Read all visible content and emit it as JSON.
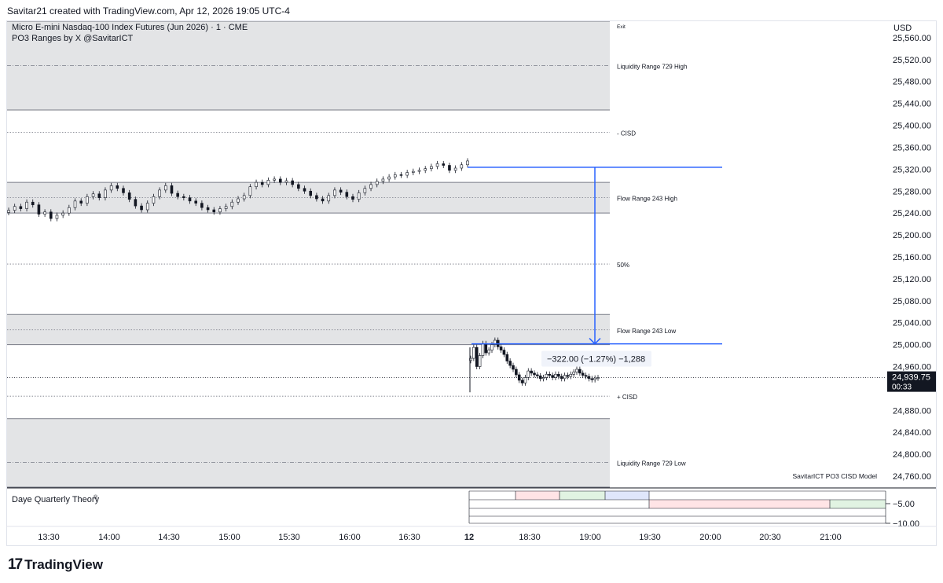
{
  "header": {
    "attribution": "Savitar21 created with TradingView.com, Apr 12, 2026 19:05 UTC-4"
  },
  "legend": {
    "symbol": "Micro E-mini Nasdaq-100 Index Futures (Jun 2026) · 1 · CME",
    "indicator": "PO3 Ranges by X @SavitarICT"
  },
  "brand": {
    "mark": "17",
    "name": "TradingView"
  },
  "colors": {
    "measure": "#2962ff",
    "candle": "#131722",
    "zone": "#e3e4e6",
    "price_label_bg": "#131722"
  },
  "chart_data": {
    "type": "candlestick",
    "currency": "USD",
    "ylim": [
      24740,
      25590
    ],
    "y_ticks": [
      25560,
      25520,
      25480,
      25440,
      25400,
      25360,
      25320,
      25280,
      25240,
      25200,
      25160,
      25120,
      25080,
      25040,
      25000,
      24960,
      24880,
      24840,
      24800,
      24760
    ],
    "y_tick_labels": [
      "25,560.00",
      "25,520.00",
      "25,480.00",
      "25,440.00",
      "25,400.00",
      "25,360.00",
      "25,320.00",
      "25,280.00",
      "25,240.00",
      "25,200.00",
      "25,160.00",
      "25,120.00",
      "25,080.00",
      "25,040.00",
      "25,000.00",
      "24,960.00",
      "24,880.00",
      "24,840.00",
      "24,800.00",
      "24,760.00"
    ],
    "x_ticks": [
      "13:30",
      "14:00",
      "14:30",
      "15:00",
      "15:30",
      "16:00",
      "16:30",
      "12",
      "18:30",
      "19:00",
      "19:30",
      "20:00",
      "20:30",
      "21:00"
    ],
    "last_price": {
      "value": 24939.75,
      "label": "24,939.75",
      "countdown": "00:33"
    },
    "zones": [
      {
        "name": "liquidity-range-729-high-zone",
        "top": 25590,
        "bottom": 25428
      },
      {
        "name": "flow-range-243-high-zone",
        "top": 25296,
        "bottom": 25240
      },
      {
        "name": "flow-range-243-low-zone",
        "top": 25055,
        "bottom": 25000
      },
      {
        "name": "liquidity-range-729-low-zone",
        "top": 24865,
        "bottom": 24730
      }
    ],
    "levels": [
      {
        "label": "Exit",
        "value": 25590,
        "style": "none",
        "small": true
      },
      {
        "label": "Liquidity Range 729 High",
        "value": 25509,
        "style": "dashdot"
      },
      {
        "label": "- CISD",
        "value": 25387,
        "style": "dotted"
      },
      {
        "label": "Flow Range 243 High",
        "value": 25268,
        "style": "dotted"
      },
      {
        "label": "50%",
        "value": 25147,
        "style": "dotted"
      },
      {
        "label": "Flow Range 243 Low",
        "value": 25027,
        "style": "dotted"
      },
      {
        "label": "+ CISD",
        "value": 24906,
        "style": "dotted"
      },
      {
        "label": "Liquidity Range 729 Low",
        "value": 24785,
        "style": "dashdot"
      }
    ],
    "measure": {
      "from": 25323.5,
      "to": 25001.5,
      "label": "−322.00 (−1.27%) −1,288"
    },
    "session1": {
      "start_slot": 0,
      "end_slot": 76,
      "close": [
        25245,
        25252,
        25248,
        25260,
        25255,
        25238,
        25242,
        25230,
        25236,
        25240,
        25250,
        25262,
        25258,
        25270,
        25275,
        25268,
        25282,
        25290,
        25285,
        25277,
        25265,
        25253,
        25246,
        25258,
        25270,
        25282,
        25290,
        25276,
        25270,
        25268,
        25262,
        25258,
        25250,
        25246,
        25242,
        25248,
        25252,
        25260,
        25266,
        25272,
        25288,
        25296,
        25292,
        25300,
        25302,
        25296,
        25299,
        25292,
        25285,
        25280,
        25272,
        25266,
        25262,
        25272,
        25282,
        25278,
        25270,
        25265,
        25277,
        25285,
        25292,
        25298,
        25302,
        25306,
        25310,
        25309,
        25314,
        25316,
        25318,
        25321,
        25325,
        25330,
        25327,
        25318,
        25322,
        25328,
        25335
      ]
    },
    "session2": {
      "start_slot": 0,
      "end_slot": 42,
      "close": [
        24975,
        24995,
        24960,
        24980,
        25002,
        24985,
        24990,
        25000,
        25008,
        24996,
        24990,
        24982,
        24970,
        24962,
        24955,
        24945,
        24935,
        24930,
        24940,
        24952,
        24948,
        24945,
        24943,
        24938,
        24940,
        24946,
        24944,
        24940,
        24946,
        24942,
        24938,
        24944,
        24942,
        24946,
        24950,
        24955,
        24948,
        24944,
        24942,
        24938,
        24936,
        24939,
        24939.75
      ]
    }
  },
  "labels": {
    "watermark": "SavitarICT PO3 CISD Model"
  },
  "quarterly": {
    "title": "Daye Quarterly Theory",
    "sup": "®",
    "scale_ticks": [
      -5,
      -10
    ],
    "scale_labels": [
      "−5.00",
      "−10.00"
    ],
    "colors": [
      "#ffe4e6",
      "#e1f3e2",
      "#dfe6fb"
    ]
  }
}
